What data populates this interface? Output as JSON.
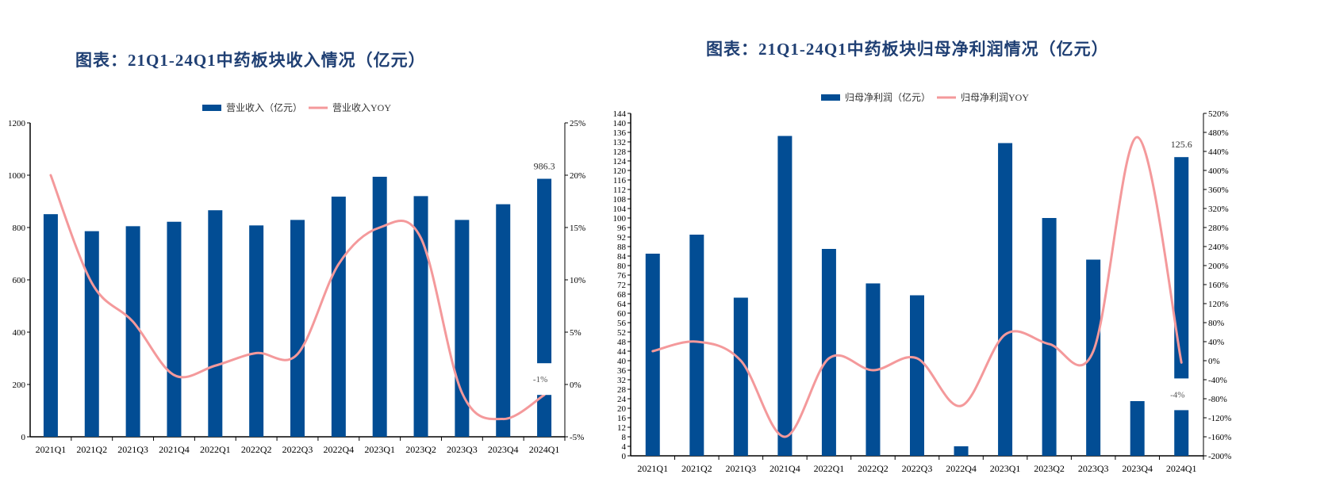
{
  "colors": {
    "bar": "#024d94",
    "line": "#f4999b",
    "title": "#1f3f73"
  },
  "chart_data": [
    {
      "type": "bar+line",
      "title": "图表：21Q1-24Q1中药板块收入情况（亿元）",
      "legend": [
        "营业收入（亿元）",
        "营业收入YOY"
      ],
      "legend_position": "top-center",
      "categories": [
        "2021Q1",
        "2021Q2",
        "2021Q3",
        "2021Q4",
        "2022Q1",
        "2022Q2",
        "2022Q3",
        "2022Q4",
        "2023Q1",
        "2023Q2",
        "2023Q3",
        "2023Q4",
        "2024Q1"
      ],
      "series": [
        {
          "name": "营业收入（亿元）",
          "type": "bar",
          "axis": "left",
          "values": [
            851,
            786,
            805,
            822,
            866,
            808,
            829,
            918,
            994,
            920,
            829,
            889,
            986.3
          ]
        },
        {
          "name": "营业收入YOY",
          "type": "line",
          "axis": "right",
          "unit": "%",
          "values": [
            20,
            9.7,
            6,
            0.9,
            1.8,
            3,
            2.9,
            11.5,
            15,
            14,
            -0.8,
            -3.3,
            -1
          ]
        }
      ],
      "left_axis": {
        "range": [
          0,
          1200
        ],
        "ticks": [
          "0",
          "200",
          "400",
          "600",
          "800",
          "1000",
          "1200"
        ]
      },
      "right_axis": {
        "range": [
          -5,
          25
        ],
        "ticks": [
          "-5%",
          "0%",
          "5%",
          "10%",
          "15%",
          "20%",
          "25%"
        ]
      },
      "data_labels": [
        {
          "index": 12,
          "series": 0,
          "text": "986.3"
        },
        {
          "index": 12,
          "series": 1,
          "text": "-1%"
        }
      ]
    },
    {
      "type": "bar+line",
      "title": "图表：21Q1-24Q1中药板块归母净利润情况（亿元）",
      "legend": [
        "归母净利润（亿元）",
        "归母净利润YOY"
      ],
      "legend_position": "top-center",
      "categories": [
        "2021Q1",
        "2021Q2",
        "2021Q3",
        "2021Q4",
        "2022Q1",
        "2022Q2",
        "2022Q3",
        "2022Q4",
        "2023Q1",
        "2023Q2",
        "2023Q3",
        "2023Q4",
        "2024Q1"
      ],
      "series": [
        {
          "name": "归母净利润（亿元）",
          "type": "bar",
          "axis": "left",
          "values": [
            85,
            93,
            66.5,
            134.5,
            87,
            72.5,
            67.5,
            4,
            131.5,
            100,
            82.5,
            23,
            125.6
          ]
        },
        {
          "name": "归母净利润YOY",
          "type": "line",
          "axis": "right",
          "unit": "%",
          "values": [
            20,
            40,
            0,
            -160,
            5,
            -20,
            5,
            -95,
            55,
            35,
            20,
            470,
            -4
          ]
        }
      ],
      "left_axis": {
        "range": [
          0,
          144
        ],
        "ticks": [
          "0",
          "4",
          "8",
          "12",
          "16",
          "20",
          "24",
          "28",
          "32",
          "36",
          "40",
          "44",
          "48",
          "52",
          "56",
          "60",
          "64",
          "68",
          "72",
          "76",
          "80",
          "84",
          "88",
          "92",
          "96",
          "100",
          "104",
          "108",
          "112",
          "116",
          "120",
          "124",
          "128",
          "132",
          "136",
          "140",
          "144"
        ]
      },
      "right_axis": {
        "range": [
          -200,
          520
        ],
        "ticks": [
          "-200%",
          "-160%",
          "-120%",
          "-80%",
          "-40%",
          "0%",
          "40%",
          "80%",
          "120%",
          "160%",
          "200%",
          "240%",
          "280%",
          "320%",
          "360%",
          "400%",
          "440%",
          "480%",
          "520%"
        ]
      },
      "data_labels": [
        {
          "index": 12,
          "series": 0,
          "text": "125.6"
        },
        {
          "index": 12,
          "series": 1,
          "text": "-4%"
        }
      ]
    }
  ]
}
